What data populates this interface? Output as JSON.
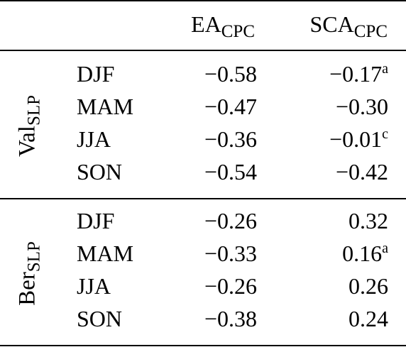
{
  "header": {
    "col1": {
      "main": "EA",
      "sub": "CPC"
    },
    "col2": {
      "main": "SCA",
      "sub": "CPC"
    }
  },
  "groups": [
    {
      "label": {
        "main": "Val",
        "sub": "SLP"
      },
      "rows": [
        {
          "season": "DJF",
          "ea": "−0.58",
          "sca": "−0.17",
          "sca_note": "a"
        },
        {
          "season": "MAM",
          "ea": "−0.47",
          "sca": "−0.30",
          "sca_note": ""
        },
        {
          "season": "JJA",
          "ea": "−0.36",
          "sca": "−0.01",
          "sca_note": "c"
        },
        {
          "season": "SON",
          "ea": "−0.54",
          "sca": "−0.42",
          "sca_note": ""
        }
      ]
    },
    {
      "label": {
        "main": "Ber",
        "sub": "SLP"
      },
      "rows": [
        {
          "season": "DJF",
          "ea": "−0.26",
          "sca": "0.32",
          "sca_note": ""
        },
        {
          "season": "MAM",
          "ea": "−0.33",
          "sca": "0.16",
          "sca_note": "a"
        },
        {
          "season": "JJA",
          "ea": "−0.26",
          "sca": "0.26",
          "sca_note": ""
        },
        {
          "season": "SON",
          "ea": "−0.38",
          "sca": "0.24",
          "sca_note": ""
        }
      ]
    }
  ]
}
